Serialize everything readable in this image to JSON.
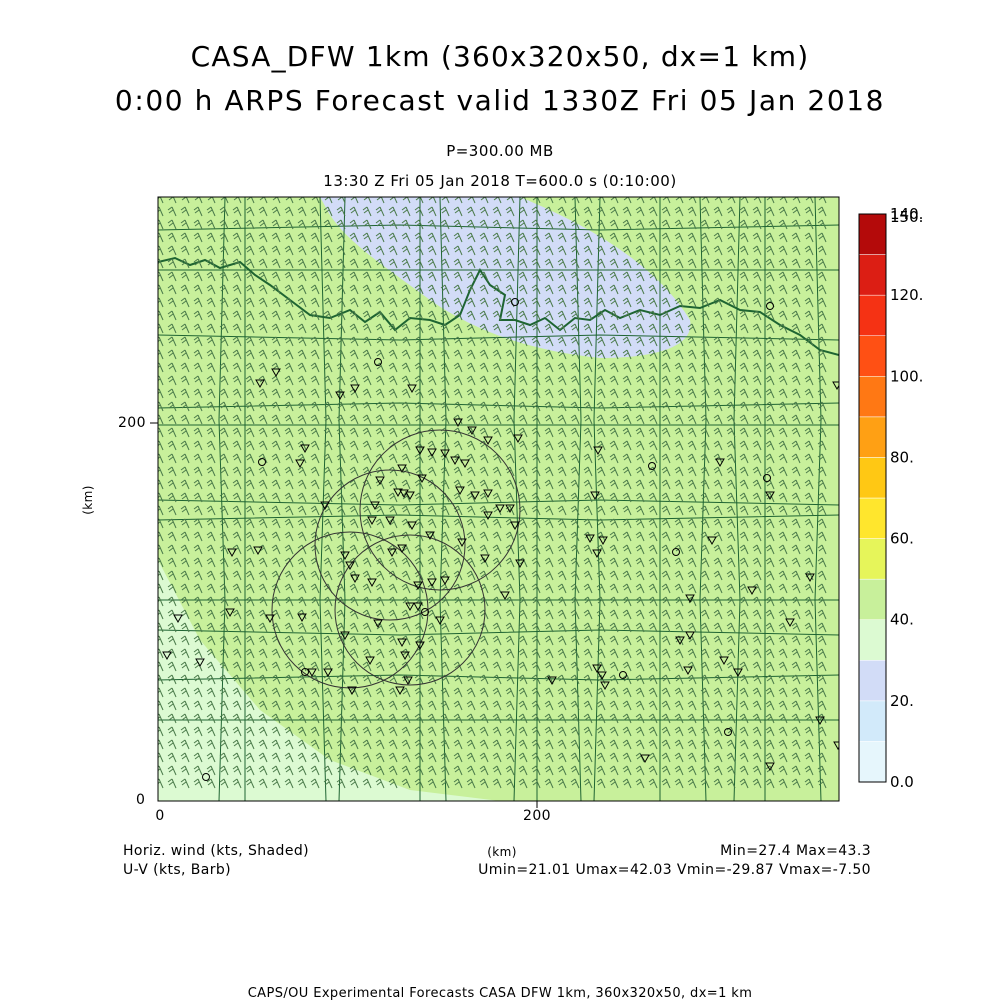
{
  "header": {
    "title_line1": "CASA_DFW 1km (360x320x50, dx=1 km)",
    "title_line2": "0:00 h ARPS Forecast valid 1330Z Fri 05 Jan 2018",
    "pressure_level": "P=300.00 MB",
    "valid_time_line": "13:30 Z Fri 05 Jan 2018    T=600.0 s (0:10:00)"
  },
  "axes": {
    "x_tick_labels": [
      "0",
      "200"
    ],
    "y_tick_labels": [
      "0",
      "200"
    ],
    "x_label": "(km)",
    "y_label": "(km)"
  },
  "colorbar": {
    "labels": [
      "0.0",
      "20.",
      "40.",
      "60.",
      "80.",
      "100.",
      "120.",
      "140.",
      "150."
    ],
    "colors": [
      "#e6f6fc",
      "#d2eafa",
      "#d2dcf7",
      "#dcfad2",
      "#c8f09b",
      "#e6f55a",
      "#ffe62d",
      "#ffc814",
      "#ffa014",
      "#ff7814",
      "#ff5014",
      "#f53214",
      "#dc1e14",
      "#b40a0a"
    ]
  },
  "legend": {
    "shaded_field": "Horiz. wind (kts, Shaded)",
    "barb_field": "U-V (kts, Barb)",
    "minmax": "Min=27.4 Max=43.3",
    "uv_minmax": "Umin=21.01 Umax=42.03 Vmin=-29.87 Vmax=-7.50"
  },
  "footer": {
    "credit": "CAPS/OU Experimental Forecasts  CASA DFW 1km, 360x320x50, dx=1 km"
  },
  "map_colors": {
    "background_field": "#c8f09b",
    "low_wind_region": "#d2dcf7",
    "light_field": "#dcfad2",
    "boundary_line": "#1e6432",
    "barb_color": "#4a7a4a"
  }
}
